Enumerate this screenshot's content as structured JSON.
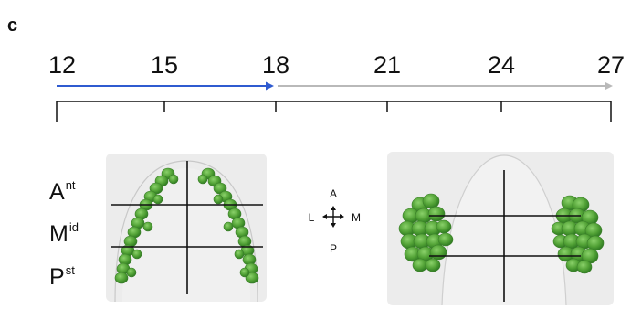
{
  "panel_label": "c",
  "timeline": {
    "ticks": [
      "12",
      "15",
      "18",
      "21",
      "24",
      "27"
    ],
    "progress_range": [
      "12",
      "18"
    ],
    "colors": {
      "progress": "#2f5bd0",
      "remaining": "#b9b9b9",
      "axis": "#111111"
    }
  },
  "regions": {
    "anterior": {
      "main": "A",
      "sup": "nt"
    },
    "middle": {
      "main": "M",
      "sup": "id"
    },
    "posterior": {
      "main": "P",
      "sup": "st"
    }
  },
  "compass": {
    "top": "A",
    "bottom": "P",
    "left": "L",
    "right": "M"
  },
  "colors": {
    "cell_fill": "#5aa83d",
    "cell_stroke": "#3b7f2a",
    "tissue_bg": "#e9e9e9"
  }
}
